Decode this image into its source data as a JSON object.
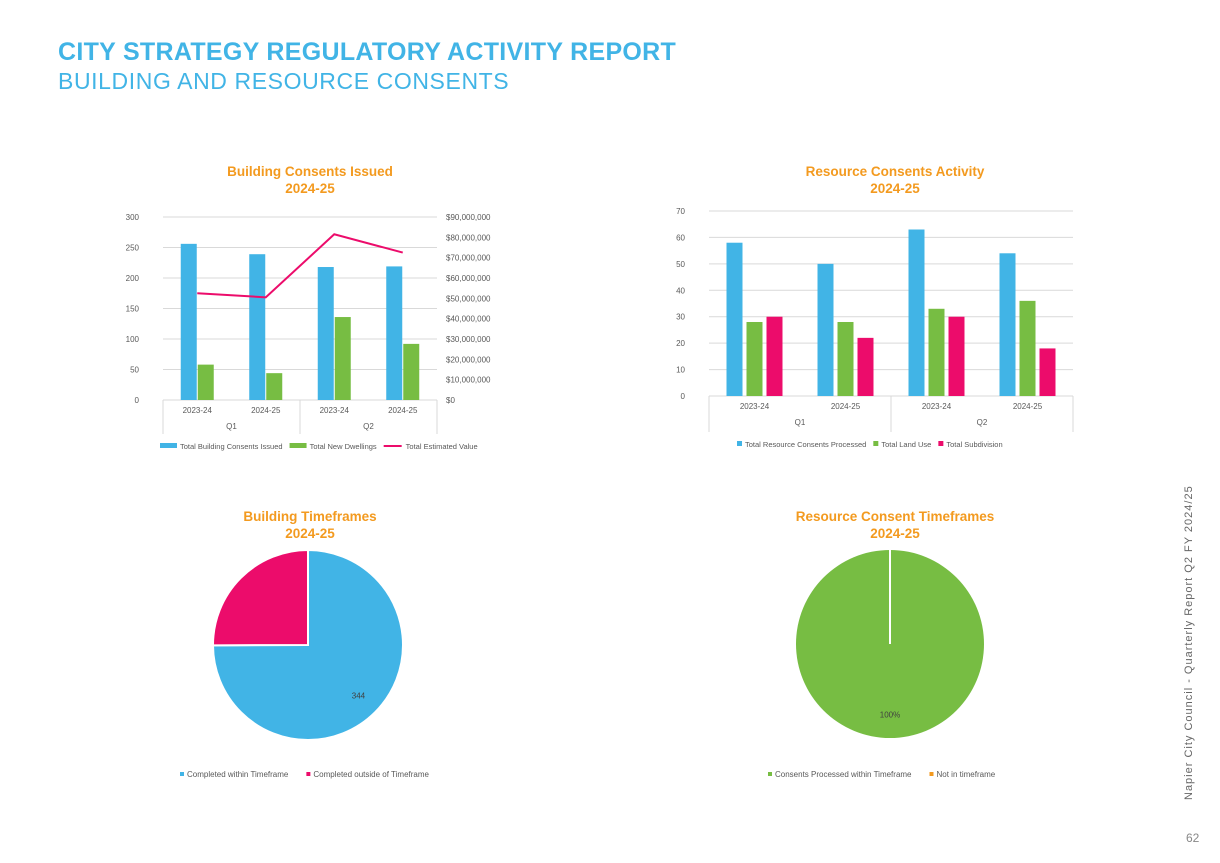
{
  "header": {
    "title": "CITY STRATEGY REGULATORY ACTIVITY REPORT",
    "subtitle": "BUILDING AND RESOURCE CONSENTS"
  },
  "footer": {
    "side_text": "Napier City Council - Quarterly Report Q2 FY 2024/25",
    "page_number": "62"
  },
  "colors": {
    "blue": "#41b4e6",
    "green": "#77bd43",
    "pink": "#ec0c6b",
    "orange": "#f39a1f"
  },
  "chart_data": [
    {
      "type": "bar",
      "title_line1": "Building Consents Issued",
      "title_line2": "2024-25",
      "categories": [
        "2023-24",
        "2024-25",
        "2023-24",
        "2024-25"
      ],
      "groups": [
        "Q1",
        "Q2"
      ],
      "ylim": [
        0,
        300
      ],
      "yticks": [
        "0",
        "50",
        "100",
        "150",
        "200",
        "250",
        "300"
      ],
      "y2lim": [
        0,
        90000000
      ],
      "y2ticks": [
        "$0",
        "$10,000,000",
        "$20,000,000",
        "$30,000,000",
        "$40,000,000",
        "$50,000,000",
        "$60,000,000",
        "$70,000,000",
        "$80,000,000",
        "$90,000,000"
      ],
      "series": [
        {
          "name": "Total Building Consents Issued",
          "color": "#41b4e6",
          "kind": "bar",
          "values": [
            256,
            239,
            218,
            219
          ]
        },
        {
          "name": "Total New Dwellings",
          "color": "#77bd43",
          "kind": "bar",
          "values": [
            58,
            44,
            136,
            92
          ]
        },
        {
          "name": "Total Estimated Value",
          "color": "#ec0c6b",
          "kind": "line",
          "axis": "right",
          "values": [
            52500000,
            50500000,
            81500000,
            72500000
          ]
        }
      ],
      "legend": "bottom"
    },
    {
      "type": "bar",
      "title_line1": "Resource Consents Activity",
      "title_line2": "2024-25",
      "categories": [
        "2023-24",
        "2024-25",
        "2023-24",
        "2024-25"
      ],
      "groups": [
        "Q1",
        "Q2"
      ],
      "ylim": [
        0,
        70
      ],
      "yticks": [
        "0",
        "10",
        "20",
        "30",
        "40",
        "50",
        "60",
        "70"
      ],
      "series": [
        {
          "name": "Total Resource Consents Processed",
          "color": "#41b4e6",
          "values": [
            58,
            50,
            63,
            54
          ]
        },
        {
          "name": "Total Land Use",
          "color": "#77bd43",
          "values": [
            28,
            28,
            33,
            36
          ]
        },
        {
          "name": "Total Subdivision",
          "color": "#ec0c6b",
          "values": [
            30,
            22,
            30,
            18
          ]
        }
      ],
      "legend": "bottom"
    },
    {
      "type": "pie",
      "title_line1": "Building Timeframes",
      "title_line2": "2024-25",
      "slices": [
        {
          "name": "Completed within Timeframe",
          "value": 344,
          "label": "344",
          "color": "#41b4e6"
        },
        {
          "name": "Completed outside of Timeframe",
          "value": 115,
          "label": "",
          "color": "#ec0c6b"
        }
      ],
      "legend": "bottom"
    },
    {
      "type": "pie",
      "title_line1": "Resource Consent Timeframes",
      "title_line2": "2024-25",
      "slices": [
        {
          "name": "Consents Processed within Timeframe",
          "value": 100,
          "label": "100%",
          "color": "#77bd43"
        },
        {
          "name": "Not in timeframe",
          "value": 0,
          "label": "",
          "color": "#f39a1f"
        }
      ],
      "legend": "bottom"
    }
  ]
}
